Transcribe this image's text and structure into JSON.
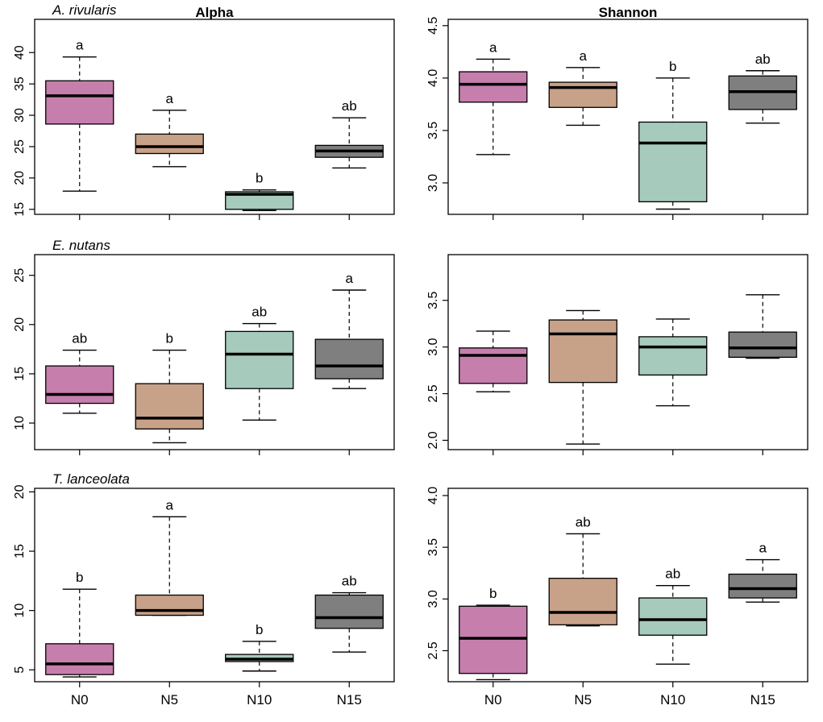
{
  "colors": {
    "N0": "#c67ead",
    "N5": "#c8a189",
    "N10": "#a6cabb",
    "N15": "#7f7f7f"
  },
  "headers": {
    "left": "Alpha",
    "right": "Shannon"
  },
  "chart_data": [
    {
      "id": "alpha-ar",
      "type": "boxplot",
      "title": "A. rivularis",
      "metric": "Alpha",
      "categories": [
        "N0",
        "N5",
        "N10",
        "N15"
      ],
      "ylim": [
        14.2,
        45.3
      ],
      "yticks": [
        15,
        20,
        25,
        30,
        35,
        40
      ],
      "boxes": [
        {
          "min": 17.9,
          "q1": 28.6,
          "median": 33.1,
          "q3": 35.5,
          "max": 39.3,
          "letter": "a"
        },
        {
          "min": 21.8,
          "q1": 23.9,
          "median": 25.0,
          "q3": 27.0,
          "max": 30.8,
          "letter": "a"
        },
        {
          "min": 14.8,
          "q1": 15.0,
          "median": 17.4,
          "q3": 17.8,
          "max": 18.1,
          "letter": "b"
        },
        {
          "min": 21.6,
          "q1": 23.3,
          "median": 24.3,
          "q3": 25.2,
          "max": 29.6,
          "letter": "ab"
        }
      ]
    },
    {
      "id": "shannon-ar",
      "type": "boxplot",
      "title": "",
      "metric": "Shannon",
      "categories": [
        "N0",
        "N5",
        "N10",
        "N15"
      ],
      "ylim": [
        2.7,
        4.56
      ],
      "yticks": [
        3.0,
        3.5,
        4.0,
        4.5
      ],
      "boxes": [
        {
          "min": 3.27,
          "q1": 3.77,
          "median": 3.94,
          "q3": 4.06,
          "max": 4.18,
          "letter": "a"
        },
        {
          "min": 3.55,
          "q1": 3.72,
          "median": 3.91,
          "q3": 3.96,
          "max": 4.1,
          "letter": "a"
        },
        {
          "min": 2.75,
          "q1": 2.82,
          "median": 3.38,
          "q3": 3.58,
          "max": 4.0,
          "letter": "b"
        },
        {
          "min": 3.57,
          "q1": 3.7,
          "median": 3.87,
          "q3": 4.02,
          "max": 4.07,
          "letter": "ab"
        }
      ]
    },
    {
      "id": "alpha-en",
      "type": "boxplot",
      "title": "E. nutans",
      "metric": "Alpha",
      "categories": [
        "N0",
        "N5",
        "N10",
        "N15"
      ],
      "ylim": [
        7.3,
        27.1
      ],
      "yticks": [
        10,
        15,
        20,
        25
      ],
      "boxes": [
        {
          "min": 11.0,
          "q1": 12.0,
          "median": 12.9,
          "q3": 15.8,
          "max": 17.4,
          "letter": "ab"
        },
        {
          "min": 8.0,
          "q1": 9.4,
          "median": 10.5,
          "q3": 14.0,
          "max": 17.4,
          "letter": "b"
        },
        {
          "min": 10.3,
          "q1": 13.5,
          "median": 17.0,
          "q3": 19.3,
          "max": 20.1,
          "letter": "ab"
        },
        {
          "min": 13.5,
          "q1": 14.5,
          "median": 15.8,
          "q3": 18.5,
          "max": 23.5,
          "letter": "a"
        }
      ]
    },
    {
      "id": "shannon-en",
      "type": "boxplot",
      "title": "",
      "metric": "Shannon",
      "categories": [
        "N0",
        "N5",
        "N10",
        "N15"
      ],
      "ylim": [
        1.9,
        3.99
      ],
      "yticks": [
        2.0,
        2.5,
        3.0,
        3.5
      ],
      "boxes": [
        {
          "min": 2.52,
          "q1": 2.61,
          "median": 2.91,
          "q3": 2.99,
          "max": 3.17,
          "letter": ""
        },
        {
          "min": 1.96,
          "q1": 2.62,
          "median": 3.14,
          "q3": 3.29,
          "max": 3.39,
          "letter": ""
        },
        {
          "min": 2.37,
          "q1": 2.7,
          "median": 3.0,
          "q3": 3.11,
          "max": 3.3,
          "letter": ""
        },
        {
          "min": 2.88,
          "q1": 2.89,
          "median": 2.99,
          "q3": 3.16,
          "max": 3.56,
          "letter": ""
        }
      ]
    },
    {
      "id": "alpha-tl",
      "type": "boxplot",
      "title": "T. lanceolata",
      "metric": "Alpha",
      "categories": [
        "N0",
        "N5",
        "N10",
        "N15"
      ],
      "ylim": [
        4.0,
        20.3
      ],
      "yticks": [
        5,
        10,
        15,
        20
      ],
      "boxes": [
        {
          "min": 4.4,
          "q1": 4.6,
          "median": 5.5,
          "q3": 7.2,
          "max": 11.8,
          "letter": "b"
        },
        {
          "min": 9.6,
          "q1": 9.6,
          "median": 10.0,
          "q3": 11.3,
          "max": 17.9,
          "letter": "a"
        },
        {
          "min": 4.9,
          "q1": 5.7,
          "median": 5.9,
          "q3": 6.3,
          "max": 7.4,
          "letter": "b"
        },
        {
          "min": 6.5,
          "q1": 8.5,
          "median": 9.4,
          "q3": 11.3,
          "max": 11.5,
          "letter": "ab"
        }
      ]
    },
    {
      "id": "shannon-tl",
      "type": "boxplot",
      "title": "",
      "metric": "Shannon",
      "categories": [
        "N0",
        "N5",
        "N10",
        "N15"
      ],
      "ylim": [
        2.2,
        4.07
      ],
      "yticks": [
        2.5,
        3.0,
        3.5,
        4.0
      ],
      "boxes": [
        {
          "min": 2.22,
          "q1": 2.28,
          "median": 2.62,
          "q3": 2.93,
          "max": 2.94,
          "letter": "b"
        },
        {
          "min": 2.74,
          "q1": 2.75,
          "median": 2.87,
          "q3": 3.2,
          "max": 3.63,
          "letter": "ab"
        },
        {
          "min": 2.37,
          "q1": 2.65,
          "median": 2.8,
          "q3": 3.01,
          "max": 3.13,
          "letter": "ab"
        },
        {
          "min": 2.97,
          "q1": 3.01,
          "median": 3.1,
          "q3": 3.24,
          "max": 3.38,
          "letter": "a"
        }
      ]
    }
  ]
}
